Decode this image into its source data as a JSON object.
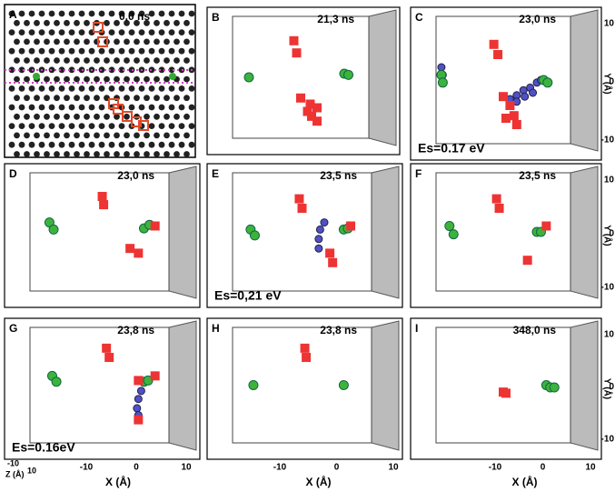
{
  "panels": [
    {
      "label": "A",
      "time": "0,0 ns"
    },
    {
      "label": "B",
      "time": "21,3 ns"
    },
    {
      "label": "C",
      "time": "23,0 ns",
      "energy": "Es=0.17 eV"
    },
    {
      "label": "D",
      "time": "23,0 ns"
    },
    {
      "label": "E",
      "time": "23,5 ns",
      "energy": "Es=0,21 eV"
    },
    {
      "label": "F",
      "time": "23,5 ns"
    },
    {
      "label": "G",
      "time": "23,8 ns",
      "energy": "Es=0.16eV"
    },
    {
      "label": "H",
      "time": "23,8 ns"
    },
    {
      "label": "I",
      "time": "348,0 ns"
    }
  ],
  "y_axis": {
    "label": "Y (Å)",
    "ticks": [
      "10",
      "0",
      "-10"
    ]
  },
  "x_axis": {
    "label": "X (Å)",
    "ticks": [
      "-10",
      "0",
      "10"
    ]
  },
  "z_axis": {
    "label": "Z (Å)",
    "ticks": [
      "-10",
      "10"
    ]
  }
}
